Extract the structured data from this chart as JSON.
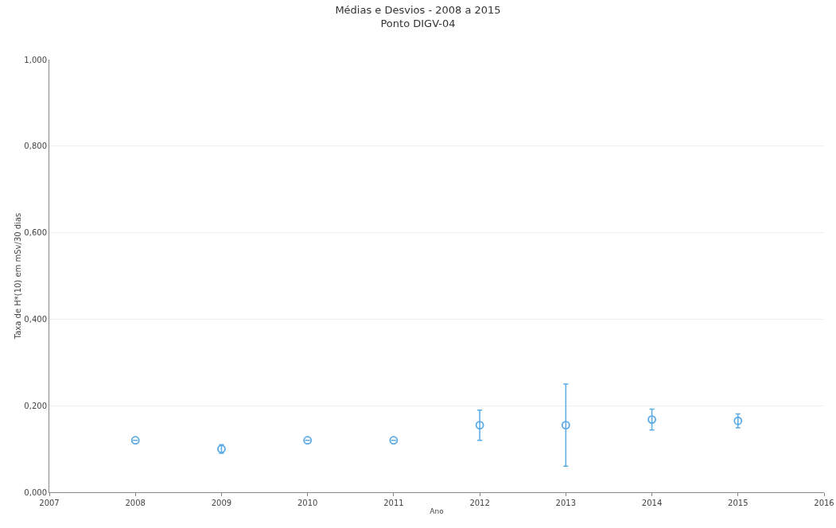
{
  "chart_data": {
    "type": "scatter",
    "title": "Médias e Desvios - 2008 a 2015",
    "subtitle": "Ponto DIGV-04",
    "xlabel": "Ano",
    "ylabel": "Taxa de H*(10) em mSv/30 dias",
    "x": [
      2008,
      2009,
      2010,
      2011,
      2012,
      2013,
      2014,
      2015
    ],
    "values": [
      0.12,
      0.1,
      0.12,
      0.12,
      0.155,
      0.155,
      0.168,
      0.165
    ],
    "errors": [
      null,
      0.01,
      null,
      null,
      0.035,
      0.095,
      0.024,
      0.016
    ],
    "color": "#5aaae6",
    "marker": "circle",
    "grid": "y",
    "xlim": [
      2007,
      2016
    ],
    "xticks": [
      2007,
      2008,
      2009,
      2010,
      2011,
      2012,
      2013,
      2014,
      2015,
      2016
    ],
    "ylim": [
      0,
      1
    ],
    "yticks": [
      {
        "value": 0,
        "label": "0,000"
      },
      {
        "value": 0.2,
        "label": "0,200"
      },
      {
        "value": 0.4,
        "label": "0,400"
      },
      {
        "value": 0.6,
        "label": "0,600"
      },
      {
        "value": 0.8,
        "label": "0,800"
      },
      {
        "value": 1,
        "label": "1,000"
      }
    ]
  }
}
